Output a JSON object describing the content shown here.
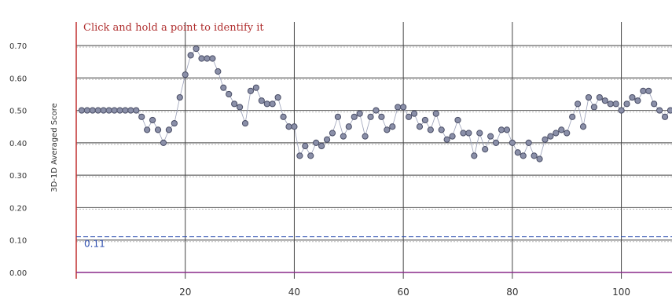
{
  "hint_text": "Click and hold a point to identify it",
  "chart_data": {
    "type": "scatter",
    "title": "",
    "xlabel": "",
    "ylabel": "3D-1D Averaged Score",
    "xlim": [
      0,
      109
    ],
    "ylim": [
      0,
      0.7
    ],
    "xticks": [
      20,
      40,
      60,
      80,
      100
    ],
    "xtick_labels": [
      "20",
      "40",
      "60",
      "80",
      "100"
    ],
    "yticks": [
      0,
      0.1,
      0.2,
      0.3,
      0.4,
      0.5,
      0.6,
      0.7
    ],
    "ytick_labels": [
      "0.00",
      "0.10",
      "0.20",
      "0.30",
      "0.40",
      "0.50",
      "0.60",
      "0.70"
    ],
    "grid": true,
    "reference_line": {
      "y": 0.11,
      "label": "0.11",
      "color": "#3050b0"
    },
    "series": [
      {
        "color": "#8a8fa8",
        "x": [
          1,
          2,
          3,
          4,
          5,
          6,
          7,
          8,
          9,
          10,
          11,
          12,
          13,
          14,
          15,
          16,
          17,
          18,
          19,
          20,
          21,
          22,
          23,
          24,
          25,
          26,
          27,
          28,
          29,
          30,
          31,
          32,
          33,
          34,
          35,
          36,
          37,
          38,
          39,
          40,
          41,
          42,
          43,
          44,
          45,
          46,
          47,
          48,
          49,
          50,
          51,
          52,
          53,
          54,
          55,
          56,
          57,
          58,
          59,
          60,
          61,
          62,
          63,
          64,
          65,
          66,
          67,
          68,
          69,
          70,
          71,
          72,
          73,
          74,
          75,
          76,
          77,
          78,
          79,
          80,
          81,
          82,
          83,
          84,
          85,
          86,
          87,
          88,
          89,
          90,
          91,
          92,
          93,
          94,
          95,
          96,
          97,
          98,
          99,
          100,
          101,
          102,
          103,
          104,
          105,
          106,
          107,
          108,
          109
        ],
        "y": [
          0.5,
          0.5,
          0.5,
          0.5,
          0.5,
          0.5,
          0.5,
          0.5,
          0.5,
          0.5,
          0.5,
          0.48,
          0.44,
          0.47,
          0.44,
          0.4,
          0.44,
          0.46,
          0.54,
          0.61,
          0.67,
          0.69,
          0.66,
          0.66,
          0.66,
          0.62,
          0.57,
          0.55,
          0.52,
          0.51,
          0.46,
          0.56,
          0.57,
          0.53,
          0.52,
          0.52,
          0.54,
          0.48,
          0.45,
          0.45,
          0.36,
          0.39,
          0.36,
          0.4,
          0.39,
          0.41,
          0.43,
          0.48,
          0.42,
          0.45,
          0.48,
          0.49,
          0.42,
          0.48,
          0.5,
          0.48,
          0.44,
          0.45,
          0.51,
          0.51,
          0.48,
          0.49,
          0.45,
          0.47,
          0.44,
          0.49,
          0.44,
          0.41,
          0.42,
          0.47,
          0.43,
          0.43,
          0.36,
          0.43,
          0.38,
          0.42,
          0.4,
          0.44,
          0.44,
          0.4,
          0.37,
          0.36,
          0.4,
          0.36,
          0.35,
          0.41,
          0.42,
          0.43,
          0.44,
          0.43,
          0.48,
          0.52,
          0.45,
          0.54,
          0.51,
          0.54,
          0.53,
          0.52,
          0.52,
          0.5,
          0.52,
          0.54,
          0.53,
          0.56,
          0.56,
          0.52,
          0.5,
          0.48,
          0.5
        ]
      }
    ]
  }
}
